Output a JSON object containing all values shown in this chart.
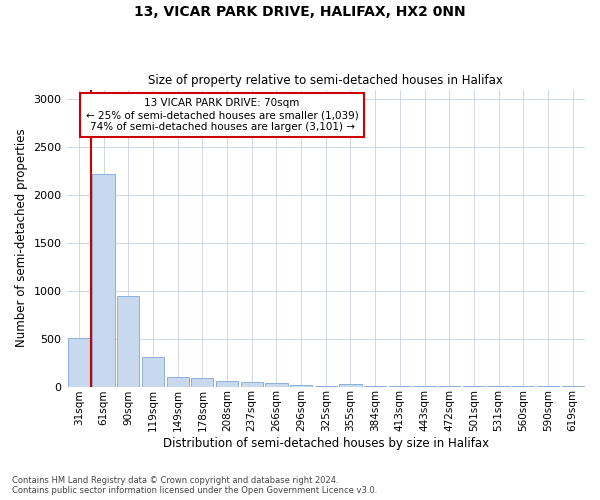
{
  "title1": "13, VICAR PARK DRIVE, HALIFAX, HX2 0NN",
  "title2": "Size of property relative to semi-detached houses in Halifax",
  "xlabel": "Distribution of semi-detached houses by size in Halifax",
  "ylabel": "Number of semi-detached properties",
  "footnote1": "Contains HM Land Registry data © Crown copyright and database right 2024.",
  "footnote2": "Contains public sector information licensed under the Open Government Licence v3.0.",
  "annotation_line1": "13 VICAR PARK DRIVE: 70sqm",
  "annotation_line2": "← 25% of semi-detached houses are smaller (1,039)",
  "annotation_line3": "74% of semi-detached houses are larger (3,101) →",
  "bar_labels": [
    "31sqm",
    "61sqm",
    "90sqm",
    "119sqm",
    "149sqm",
    "178sqm",
    "208sqm",
    "237sqm",
    "266sqm",
    "296sqm",
    "325sqm",
    "355sqm",
    "384sqm",
    "413sqm",
    "443sqm",
    "472sqm",
    "501sqm",
    "531sqm",
    "560sqm",
    "590sqm",
    "619sqm"
  ],
  "bar_values": [
    510,
    2220,
    950,
    305,
    100,
    90,
    60,
    45,
    35,
    20,
    10,
    25,
    3,
    3,
    2,
    1,
    1,
    1,
    1,
    1,
    1
  ],
  "bar_color": "#c8d8ee",
  "bar_edge_color": "#7fa8d4",
  "red_line_x": 1.5,
  "ylim": [
    0,
    3100
  ],
  "yticks": [
    0,
    500,
    1000,
    1500,
    2000,
    2500,
    3000
  ],
  "annotation_box_color": "#ffffff",
  "annotation_box_edge_color": "#cc0000",
  "red_line_color": "#cc0000",
  "background_color": "#ffffff",
  "grid_color": "#cdd8ea"
}
